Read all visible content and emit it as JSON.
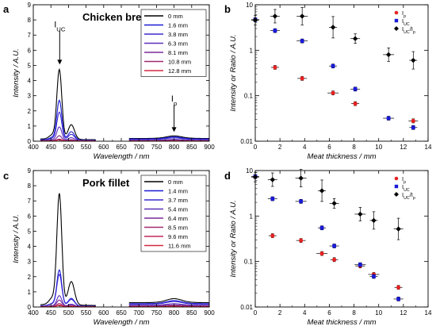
{
  "chart_data": [
    {
      "panel_label": "a",
      "type": "line",
      "title": "Chicken breast",
      "xlabel": "Wavelength / nm",
      "ylabel": "Intensity / A.U.",
      "xlim": [
        400,
        900
      ],
      "ylim": [
        0,
        9
      ],
      "xticks": [
        400,
        450,
        500,
        550,
        600,
        650,
        700,
        750,
        800,
        850,
        900
      ],
      "yticks": [
        0,
        1,
        2,
        3,
        4,
        5,
        6,
        7,
        8,
        9
      ],
      "legend_position": "top-right",
      "annotations": [
        {
          "text": "I",
          "sub": "UC",
          "color": "#1a1ad6",
          "at": [
            475,
            4.9
          ],
          "label_at": [
            475,
            7.3
          ]
        },
        {
          "text": "I",
          "sub": "p",
          "color": "#e52222",
          "at": [
            800,
            0.45
          ],
          "label_at": [
            800,
            2.4
          ]
        }
      ],
      "series": [
        {
          "name": "0 mm",
          "color": "#000000",
          "scale": 4.85,
          "tail": 0.5,
          "nir": 0.35
        },
        {
          "name": "1.6 mm",
          "color": "#1a1ad6",
          "scale": 2.75,
          "tail": 0.3,
          "nir": 0.28
        },
        {
          "name": "3.8 mm",
          "color": "#3a2ad0",
          "scale": 1.95,
          "tail": 0.22,
          "nir": 0.22
        },
        {
          "name": "6.3 mm",
          "color": "#5a30b8",
          "scale": 0.95,
          "tail": 0.1,
          "nir": 0.12
        },
        {
          "name": "8.1 mm",
          "color": "#7a2a98",
          "scale": 0.35,
          "tail": 0.04,
          "nir": 0.07
        },
        {
          "name": "10.8 mm",
          "color": "#a02a70",
          "scale": 0.12,
          "tail": 0.02,
          "nir": 0.04
        },
        {
          "name": "12.8 mm",
          "color": "#d42a40",
          "scale": 0.06,
          "tail": 0.01,
          "nir": 0.02
        }
      ]
    },
    {
      "panel_label": "b",
      "type": "scatter",
      "title": "",
      "xlabel": "Meat thickness / mm",
      "ylabel": "Intensity or Ratio / A.U.",
      "yscale": "log",
      "xlim": [
        0,
        14
      ],
      "ylim": [
        0.01,
        10
      ],
      "xticks": [
        0,
        2,
        4,
        6,
        8,
        10,
        12,
        14
      ],
      "yticks": [
        0.01,
        0.1,
        1,
        10
      ],
      "ytick_labels": [
        "0.01",
        "0.1",
        "1",
        "10"
      ],
      "legend_position": "top-right",
      "series": [
        {
          "name": "I",
          "sub": "p",
          "marker": "circle",
          "color": "#e52222",
          "points": [
            [
              1.6,
              0.42
            ],
            [
              3.8,
              0.24
            ],
            [
              6.3,
              0.115
            ],
            [
              8.1,
              0.067
            ],
            [
              12.8,
              0.028
            ]
          ]
        },
        {
          "name": "I",
          "sub": "UC",
          "marker": "square",
          "color": "#1a1ad6",
          "points": [
            [
              0,
              4.7
            ],
            [
              1.6,
              2.7
            ],
            [
              3.8,
              1.6
            ],
            [
              6.3,
              0.45
            ],
            [
              8.1,
              0.14
            ],
            [
              10.8,
              0.032
            ],
            [
              12.8,
              0.02
            ]
          ]
        },
        {
          "name": "I",
          "sub": "UC",
          "suffix": "/I",
          "sub2": "p",
          "marker": "diamond",
          "color": "#000000",
          "points": [
            [
              0,
              4.6
            ],
            [
              1.6,
              5.6
            ],
            [
              3.8,
              5.6
            ],
            [
              6.3,
              3.2
            ],
            [
              8.1,
              1.8
            ],
            [
              10.8,
              0.8
            ],
            [
              12.8,
              0.6
            ]
          ]
        }
      ]
    },
    {
      "panel_label": "c",
      "type": "line",
      "title": "Pork fillet",
      "xlabel": "Wavelength / nm",
      "ylabel": "Intensity / A.U.",
      "xlim": [
        400,
        900
      ],
      "ylim": [
        0,
        9
      ],
      "xticks": [
        400,
        450,
        500,
        550,
        600,
        650,
        700,
        750,
        800,
        850,
        900
      ],
      "yticks": [
        0,
        1,
        2,
        3,
        4,
        5,
        6,
        7,
        8,
        9
      ],
      "legend_position": "top-right",
      "annotations": [],
      "series": [
        {
          "name": "0 mm",
          "color": "#000000",
          "scale": 7.75,
          "tail": 0.55,
          "nir": 0.55
        },
        {
          "name": "1.4 mm",
          "color": "#1a1ad6",
          "scale": 2.5,
          "tail": 0.25,
          "nir": 0.42
        },
        {
          "name": "3.7 mm",
          "color": "#3a2ad0",
          "scale": 2.2,
          "tail": 0.22,
          "nir": 0.36
        },
        {
          "name": "5.4 mm",
          "color": "#5a30b8",
          "scale": 0.75,
          "tail": 0.08,
          "nir": 0.22
        },
        {
          "name": "6.4 mm",
          "color": "#7a2a98",
          "scale": 0.45,
          "tail": 0.05,
          "nir": 0.14
        },
        {
          "name": "8.5 mm",
          "color": "#a02a70",
          "scale": 0.22,
          "tail": 0.02,
          "nir": 0.08
        },
        {
          "name": "9.6 mm",
          "color": "#c02a58",
          "scale": 0.12,
          "tail": 0.01,
          "nir": 0.05
        },
        {
          "name": "11.6 mm",
          "color": "#d42a40",
          "scale": 0.08,
          "tail": 0.01,
          "nir": 0.03
        }
      ]
    },
    {
      "panel_label": "d",
      "type": "scatter",
      "title": "",
      "xlabel": "Meat thickness / mm",
      "ylabel": "Intensity or Ratio / A.U.",
      "yscale": "log",
      "xlim": [
        0,
        14
      ],
      "ylim": [
        0.01,
        10
      ],
      "xticks": [
        0,
        2,
        4,
        6,
        8,
        10,
        12,
        14
      ],
      "yticks": [
        0.01,
        0.1,
        1,
        10
      ],
      "ytick_labels": [
        "0.01",
        "0.1",
        "1",
        "10"
      ],
      "legend_position": "top-right",
      "series": [
        {
          "name": "I",
          "sub": "p",
          "marker": "circle",
          "color": "#e52222",
          "points": [
            [
              1.4,
              0.37
            ],
            [
              3.7,
              0.29
            ],
            [
              5.4,
              0.15
            ],
            [
              6.4,
              0.11
            ],
            [
              8.5,
              0.08
            ],
            [
              9.6,
              0.052
            ],
            [
              11.6,
              0.027
            ]
          ]
        },
        {
          "name": "I",
          "sub": "UC",
          "marker": "square",
          "color": "#1a1ad6",
          "points": [
            [
              0,
              7.4
            ],
            [
              1.4,
              2.4
            ],
            [
              3.7,
              2.1
            ],
            [
              5.4,
              0.55
            ],
            [
              6.4,
              0.22
            ],
            [
              8.5,
              0.085
            ],
            [
              9.6,
              0.047
            ],
            [
              11.6,
              0.015
            ]
          ]
        },
        {
          "name": "I",
          "sub": "UC",
          "suffix": "/I",
          "sub2": "p",
          "marker": "diamond",
          "color": "#000000",
          "points": [
            [
              0,
              7.2
            ],
            [
              1.4,
              6.3
            ],
            [
              3.7,
              6.8
            ],
            [
              5.4,
              3.6
            ],
            [
              6.4,
              1.9
            ],
            [
              8.5,
              1.1
            ],
            [
              9.6,
              0.8
            ],
            [
              11.6,
              0.52
            ]
          ]
        }
      ]
    }
  ]
}
